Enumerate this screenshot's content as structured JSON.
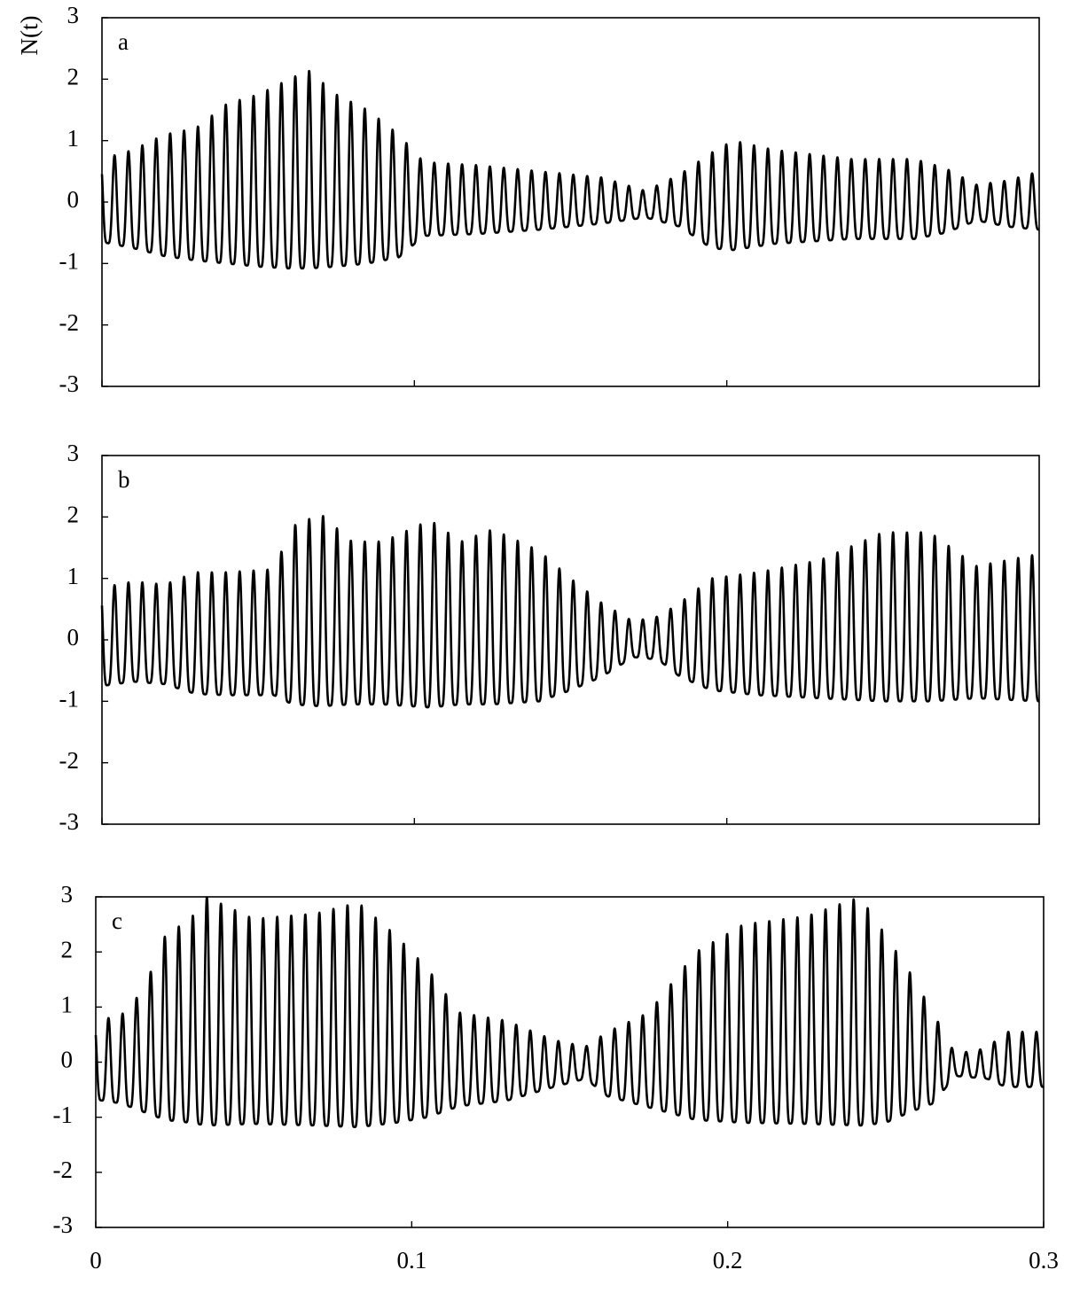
{
  "figure": {
    "ylabel": "N(t)"
  },
  "chart_data": [
    {
      "type": "line",
      "panel_label": "a",
      "xlabel": "",
      "ylabel": "N(t)",
      "xlim": [
        0,
        0.3
      ],
      "ylim": [
        -3,
        3
      ],
      "x_ticks": [
        0,
        0.1,
        0.2,
        0.3
      ],
      "y_ticks": [
        3,
        2,
        1,
        0,
        -1,
        -2,
        -3
      ],
      "x_tick_labels": [],
      "grid": false,
      "series": [
        {
          "period": 0.00445,
          "envelope": [
            [
              0.0,
              0.7,
              -0.65
            ],
            [
              0.01,
              0.85,
              -0.75
            ],
            [
              0.02,
              1.1,
              -0.88
            ],
            [
              0.03,
              1.2,
              -0.95
            ],
            [
              0.04,
              1.6,
              -1.0
            ],
            [
              0.05,
              1.75,
              -1.05
            ],
            [
              0.06,
              2.0,
              -1.08
            ],
            [
              0.066,
              2.15,
              -1.08
            ],
            [
              0.075,
              1.75,
              -1.05
            ],
            [
              0.085,
              1.5,
              -1.0
            ],
            [
              0.095,
              1.1,
              -0.9
            ],
            [
              0.103,
              0.65,
              -0.55
            ],
            [
              0.12,
              0.6,
              -0.52
            ],
            [
              0.14,
              0.5,
              -0.45
            ],
            [
              0.16,
              0.4,
              -0.35
            ],
            [
              0.174,
              0.18,
              -0.25
            ],
            [
              0.185,
              0.45,
              -0.4
            ],
            [
              0.195,
              0.8,
              -0.75
            ],
            [
              0.202,
              1.0,
              -0.78
            ],
            [
              0.215,
              0.85,
              -0.68
            ],
            [
              0.24,
              0.7,
              -0.6
            ],
            [
              0.26,
              0.7,
              -0.6
            ],
            [
              0.27,
              0.55,
              -0.5
            ],
            [
              0.28,
              0.28,
              -0.3
            ],
            [
              0.29,
              0.35,
              -0.4
            ],
            [
              0.3,
              0.5,
              -0.45
            ]
          ]
        }
      ]
    },
    {
      "type": "line",
      "panel_label": "b",
      "xlabel": "",
      "ylabel": "",
      "xlim": [
        0,
        0.3
      ],
      "ylim": [
        -3,
        3
      ],
      "x_ticks": [
        0,
        0.1,
        0.2,
        0.3
      ],
      "y_ticks": [
        3,
        2,
        1,
        0,
        -1,
        -2,
        -3
      ],
      "x_tick_labels": [],
      "grid": false,
      "series": [
        {
          "period": 0.00445,
          "envelope": [
            [
              0.0,
              0.85,
              -0.75
            ],
            [
              0.01,
              0.95,
              -0.68
            ],
            [
              0.02,
              0.9,
              -0.72
            ],
            [
              0.03,
              1.1,
              -0.88
            ],
            [
              0.04,
              1.1,
              -0.9
            ],
            [
              0.055,
              1.15,
              -0.9
            ],
            [
              0.061,
              1.85,
              -1.05
            ],
            [
              0.07,
              2.05,
              -1.08
            ],
            [
              0.08,
              1.6,
              -1.05
            ],
            [
              0.09,
              1.6,
              -1.05
            ],
            [
              0.105,
              1.95,
              -1.1
            ],
            [
              0.115,
              1.6,
              -1.05
            ],
            [
              0.125,
              1.8,
              -1.05
            ],
            [
              0.14,
              1.45,
              -1.0
            ],
            [
              0.15,
              1.0,
              -0.82
            ],
            [
              0.16,
              0.6,
              -0.6
            ],
            [
              0.17,
              0.3,
              -0.28
            ],
            [
              0.178,
              0.38,
              -0.32
            ],
            [
              0.185,
              0.6,
              -0.6
            ],
            [
              0.195,
              1.0,
              -0.82
            ],
            [
              0.21,
              1.1,
              -0.9
            ],
            [
              0.23,
              1.3,
              -0.95
            ],
            [
              0.25,
              1.75,
              -1.0
            ],
            [
              0.265,
              1.75,
              -1.0
            ],
            [
              0.28,
              1.2,
              -0.95
            ],
            [
              0.3,
              1.4,
              -1.0
            ]
          ]
        }
      ]
    },
    {
      "type": "line",
      "panel_label": "c",
      "xlabel": "",
      "ylabel": "",
      "xlim": [
        0,
        0.3
      ],
      "ylim": [
        -3,
        3
      ],
      "x_ticks": [
        0,
        0.1,
        0.2,
        0.3
      ],
      "y_ticks": [
        3,
        2,
        1,
        0,
        -1,
        -2,
        -3
      ],
      "x_tick_labels": [
        "0",
        "0.1",
        "0.2",
        "0.3"
      ],
      "grid": false,
      "series": [
        {
          "period": 0.00445,
          "envelope": [
            [
              0.0,
              0.75,
              -0.68
            ],
            [
              0.008,
              0.85,
              -0.75
            ],
            [
              0.015,
              1.3,
              -0.9
            ],
            [
              0.022,
              2.3,
              -1.05
            ],
            [
              0.03,
              2.6,
              -1.1
            ],
            [
              0.035,
              3.0,
              -1.15
            ],
            [
              0.05,
              2.6,
              -1.12
            ],
            [
              0.07,
              2.7,
              -1.15
            ],
            [
              0.083,
              2.9,
              -1.18
            ],
            [
              0.095,
              2.3,
              -1.1
            ],
            [
              0.105,
              1.7,
              -1.0
            ],
            [
              0.115,
              0.9,
              -0.8
            ],
            [
              0.13,
              0.75,
              -0.7
            ],
            [
              0.145,
              0.4,
              -0.45
            ],
            [
              0.155,
              0.28,
              -0.3
            ],
            [
              0.162,
              0.55,
              -0.62
            ],
            [
              0.175,
              0.9,
              -0.82
            ],
            [
              0.19,
              2.0,
              -1.05
            ],
            [
              0.205,
              2.5,
              -1.1
            ],
            [
              0.225,
              2.65,
              -1.12
            ],
            [
              0.242,
              3.0,
              -1.15
            ],
            [
              0.25,
              2.3,
              -1.1
            ],
            [
              0.258,
              1.6,
              -0.9
            ],
            [
              0.265,
              0.9,
              -0.75
            ],
            [
              0.272,
              0.15,
              -0.25
            ],
            [
              0.282,
              0.25,
              -0.3
            ],
            [
              0.288,
              0.55,
              -0.45
            ],
            [
              0.3,
              0.55,
              -0.45
            ]
          ]
        }
      ]
    }
  ]
}
